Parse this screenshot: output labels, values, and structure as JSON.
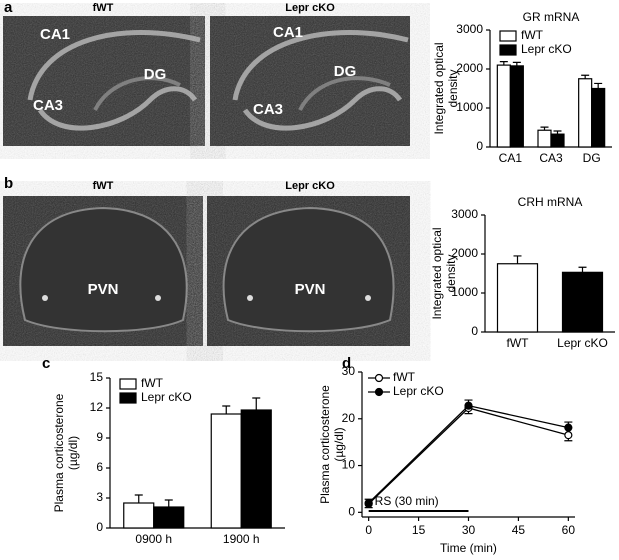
{
  "panel_labels": [
    "a",
    "b",
    "c",
    "d"
  ],
  "images": [
    {
      "caption": "fWT",
      "labels": [
        "CA1",
        "DG",
        "CA3"
      ]
    },
    {
      "caption": "Lepr cKO",
      "labels": [
        "CA1",
        "DG",
        "CA3"
      ]
    },
    {
      "caption": "fWT",
      "labels": [
        "PVN"
      ]
    },
    {
      "caption": "Lepr cKO",
      "labels": [
        "PVN"
      ]
    }
  ],
  "chart_data": [
    {
      "type": "bar",
      "title": "GR mRNA",
      "categories": [
        "CA1",
        "CA3",
        "DG"
      ],
      "series": [
        {
          "name": "fWT",
          "color": "#ffffff",
          "values": [
            2100,
            430,
            1750
          ],
          "errors": [
            90,
            80,
            90
          ]
        },
        {
          "name": "Lepr cKO",
          "color": "#000000",
          "values": [
            2080,
            330,
            1500
          ],
          "errors": [
            90,
            80,
            130
          ]
        }
      ],
      "ylim": [
        0,
        3000
      ],
      "yticks": [
        0,
        1000,
        2000,
        3000
      ],
      "ylabel": [
        "Integrated optical",
        "density"
      ],
      "legend": "upper left"
    },
    {
      "type": "bar",
      "title": "CRH mRNA",
      "categories": [
        "fWT",
        "Lepr cKO"
      ],
      "values": [
        1750,
        1530
      ],
      "errors": [
        200,
        130
      ],
      "colors": [
        "#ffffff",
        "#000000"
      ],
      "ylim": [
        0,
        3000
      ],
      "yticks": [
        0,
        1000,
        2000,
        3000
      ],
      "ylabel": [
        "Integrated optical",
        "density"
      ]
    },
    {
      "type": "bar",
      "categories": [
        "0900 h",
        "1900 h"
      ],
      "series": [
        {
          "name": "fWT",
          "color": "#ffffff",
          "values": [
            2.5,
            11.4
          ],
          "errors": [
            0.8,
            0.8
          ]
        },
        {
          "name": "Lepr cKO",
          "color": "#000000",
          "values": [
            2.1,
            11.8
          ],
          "errors": [
            0.7,
            1.2
          ]
        }
      ],
      "ylim": [
        0,
        15
      ],
      "yticks": [
        0,
        3,
        6,
        9,
        12,
        15
      ],
      "ylabel": [
        "Plasma corticosterone",
        "(µg/dl)"
      ],
      "legend": "upper left"
    },
    {
      "type": "line",
      "x": [
        0,
        30,
        60
      ],
      "series": [
        {
          "name": "fWT",
          "color": "#ffffff",
          "values": [
            1.8,
            22.3,
            16.5
          ],
          "errors": [
            0.8,
            1.2,
            1.2
          ]
        },
        {
          "name": "Lepr cKO",
          "color": "#000000",
          "values": [
            2.0,
            22.8,
            18.1
          ],
          "errors": [
            0.8,
            1.2,
            1.2
          ]
        }
      ],
      "xlim": [
        -2,
        62
      ],
      "xticks": [
        0,
        15,
        30,
        45,
        60
      ],
      "ylim": [
        -1,
        30
      ],
      "yticks": [
        0,
        10,
        20,
        30
      ],
      "xlabel": "Time (min)",
      "ylabel": [
        "Plasma corticosterone",
        "(µg/dl)"
      ],
      "annotation": "RS (30 min)",
      "annotation_span": [
        0,
        30
      ],
      "legend": "upper left"
    }
  ]
}
